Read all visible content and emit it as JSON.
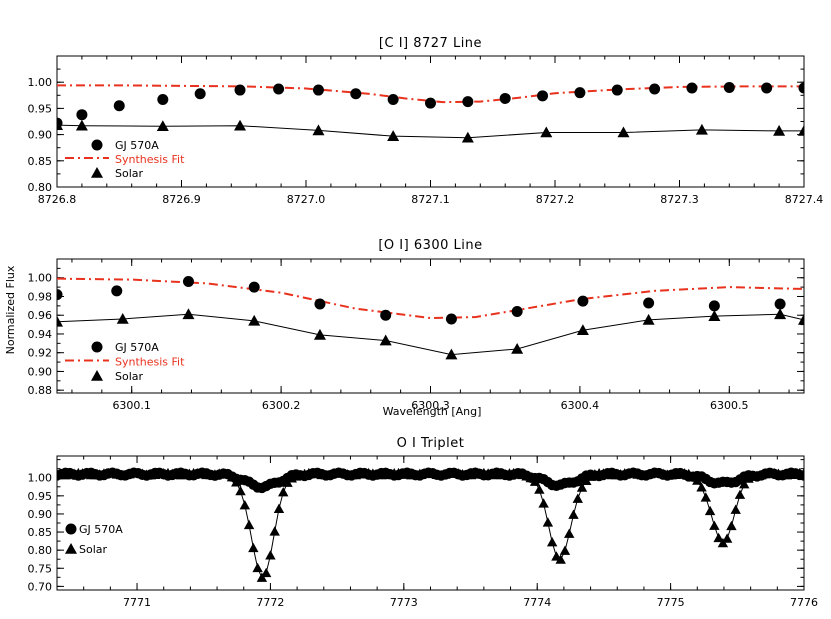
{
  "figure": {
    "ylabel": "Normalized Flux",
    "xlabel": "Wavelength [Ang]"
  },
  "colors": {
    "fit": "#e8321e",
    "observed": "#000000",
    "solar": "#000000"
  },
  "chart_data": [
    {
      "type": "line",
      "title": "[C I] 8727 Line",
      "xlim": [
        8726.8,
        8727.4
      ],
      "ylim": [
        0.8,
        1.05
      ],
      "xticks": [
        "8726.8",
        "8726.9",
        "8727.0",
        "8727.1",
        "8727.2",
        "8727.3",
        "8727.4"
      ],
      "xtick_values": [
        8726.8,
        8726.9,
        8727.0,
        8727.1,
        8727.2,
        8727.3,
        8727.4
      ],
      "yticks": [
        "0.80",
        "0.85",
        "0.90",
        "0.95",
        "1.00"
      ],
      "ytick_values": [
        0.8,
        0.85,
        0.9,
        0.95,
        1.0
      ],
      "legend": {
        "position": "lower-left",
        "entries": [
          {
            "label": "GJ 570A",
            "marker": "circle",
            "color": "#000000"
          },
          {
            "label": "Synthesis Fit",
            "marker": "dashdot",
            "color": "#e8321e"
          },
          {
            "label": "Solar",
            "marker": "triangle",
            "color": "#000000"
          }
        ]
      },
      "series": [
        {
          "name": "GJ 570A",
          "marker": "circle",
          "x": [
            8726.8,
            8726.82,
            8726.85,
            8726.885,
            8726.915,
            8726.947,
            8726.978,
            8727.01,
            8727.04,
            8727.07,
            8727.1,
            8727.13,
            8727.16,
            8727.19,
            8727.22,
            8727.25,
            8727.28,
            8727.31,
            8727.34,
            8727.37,
            8727.4
          ],
          "y": [
            0.922,
            0.938,
            0.955,
            0.967,
            0.978,
            0.985,
            0.987,
            0.985,
            0.978,
            0.967,
            0.96,
            0.963,
            0.969,
            0.974,
            0.98,
            0.985,
            0.987,
            0.989,
            0.99,
            0.989,
            0.989
          ]
        },
        {
          "name": "Synthesis Fit",
          "marker": "dashdot",
          "x": [
            8726.8,
            8726.85,
            8726.9,
            8726.95,
            8727.0,
            8727.05,
            8727.08,
            8727.11,
            8727.14,
            8727.17,
            8727.2,
            8727.25,
            8727.3,
            8727.35,
            8727.4
          ],
          "y": [
            0.994,
            0.994,
            0.993,
            0.992,
            0.988,
            0.978,
            0.969,
            0.962,
            0.963,
            0.97,
            0.979,
            0.986,
            0.991,
            0.992,
            0.992
          ]
        },
        {
          "name": "Solar",
          "marker": "triangle",
          "x": [
            8726.8,
            8726.82,
            8726.885,
            8726.947,
            8727.01,
            8727.07,
            8727.13,
            8727.193,
            8727.255,
            8727.318,
            8727.38,
            8727.4
          ],
          "y": [
            0.918,
            0.917,
            0.916,
            0.917,
            0.908,
            0.897,
            0.894,
            0.904,
            0.904,
            0.909,
            0.907,
            0.907
          ]
        }
      ]
    },
    {
      "type": "line",
      "title": "[O I] 6300 Line",
      "xlim": [
        6300.05,
        6300.55
      ],
      "ylim": [
        0.877,
        1.02
      ],
      "xticks": [
        "6300.1",
        "6300.2",
        "6300.3",
        "6300.4",
        "6300.5"
      ],
      "xtick_values": [
        6300.1,
        6300.2,
        6300.3,
        6300.4,
        6300.5
      ],
      "yticks": [
        "0.88",
        "0.90",
        "0.92",
        "0.94",
        "0.96",
        "0.98",
        "1.00"
      ],
      "ytick_values": [
        0.88,
        0.9,
        0.92,
        0.94,
        0.96,
        0.98,
        1.0
      ],
      "legend": {
        "position": "lower-left",
        "entries": [
          {
            "label": "GJ 570A",
            "marker": "circle",
            "color": "#000000"
          },
          {
            "label": "Synthesis Fit",
            "marker": "dashdot",
            "color": "#e8321e"
          },
          {
            "label": "Solar",
            "marker": "triangle",
            "color": "#000000"
          }
        ]
      },
      "series": [
        {
          "name": "GJ 570A",
          "marker": "circle",
          "x": [
            6300.05,
            6300.09,
            6300.138,
            6300.182,
            6300.226,
            6300.27,
            6300.314,
            6300.358,
            6300.402,
            6300.446,
            6300.49,
            6300.534
          ],
          "y": [
            0.982,
            0.986,
            0.996,
            0.99,
            0.972,
            0.96,
            0.956,
            0.964,
            0.975,
            0.973,
            0.97,
            0.972
          ]
        },
        {
          "name": "Synthesis Fit",
          "marker": "dashdot",
          "x": [
            6300.05,
            6300.1,
            6300.15,
            6300.2,
            6300.25,
            6300.3,
            6300.33,
            6300.36,
            6300.4,
            6300.45,
            6300.5,
            6300.55
          ],
          "y": [
            0.999,
            0.998,
            0.994,
            0.984,
            0.967,
            0.957,
            0.958,
            0.966,
            0.977,
            0.986,
            0.99,
            0.988
          ]
        },
        {
          "name": "Solar",
          "marker": "triangle",
          "x": [
            6300.05,
            6300.094,
            6300.138,
            6300.182,
            6300.226,
            6300.27,
            6300.314,
            6300.358,
            6300.402,
            6300.446,
            6300.49,
            6300.534,
            6300.55
          ],
          "y": [
            0.953,
            0.956,
            0.961,
            0.954,
            0.939,
            0.933,
            0.918,
            0.924,
            0.944,
            0.955,
            0.959,
            0.961,
            0.955
          ]
        }
      ]
    },
    {
      "type": "line",
      "title": "O I Triplet",
      "xlim": [
        7770.4,
        7776.0
      ],
      "ylim": [
        0.69,
        1.06
      ],
      "xticks": [
        "7771",
        "7772",
        "7773",
        "7774",
        "7775",
        "7776"
      ],
      "xtick_values": [
        7771,
        7772,
        7773,
        7774,
        7775,
        7776
      ],
      "yticks": [
        "0.70",
        "0.75",
        "0.80",
        "0.85",
        "0.90",
        "0.95",
        "1.00"
      ],
      "ytick_values": [
        0.7,
        0.75,
        0.8,
        0.85,
        0.9,
        0.95,
        1.0
      ],
      "legend": {
        "position": "lower-left",
        "entries": [
          {
            "label": "GJ 570A",
            "marker": "circle",
            "color": "#000000"
          },
          {
            "label": "Solar",
            "marker": "triangle",
            "color": "#000000"
          }
        ]
      },
      "lines": [
        {
          "center": 7771.94,
          "gj_depth": 0.035,
          "gj_width": 0.12,
          "solar_depth": 0.285,
          "solar_width": 0.085
        },
        {
          "center": 7774.17,
          "gj_depth": 0.03,
          "gj_width": 0.12,
          "solar_depth": 0.235,
          "solar_width": 0.085
        },
        {
          "center": 7775.39,
          "gj_depth": 0.025,
          "gj_width": 0.12,
          "solar_depth": 0.19,
          "solar_width": 0.085
        }
      ],
      "continuum": 1.01,
      "series": [
        {
          "name": "GJ 570A",
          "marker": "circle"
        },
        {
          "name": "Solar",
          "marker": "triangle"
        }
      ]
    }
  ]
}
